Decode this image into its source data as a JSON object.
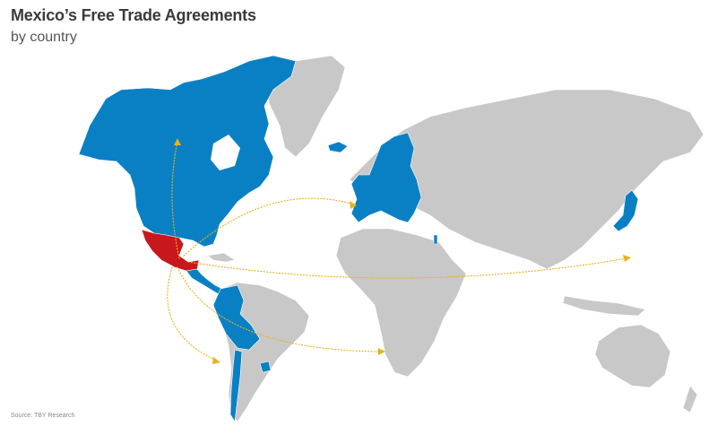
{
  "title": "Mexico’s Free Trade Agreements",
  "subtitle": "by country",
  "source": "Source: TBY Research",
  "colors": {
    "mexico": "#c8171d",
    "fta_partner": "#0a80c4",
    "other": "#c8c8c8",
    "routes": "#e8b21a"
  },
  "origin": "Mexico",
  "fta_partners": [
    "Canada",
    "United States",
    "Alaska (US)",
    "Guatemala",
    "Honduras",
    "El Salvador",
    "Nicaragua",
    "Costa Rica",
    "Panama",
    "Colombia",
    "Ecuador",
    "Peru",
    "Bolivia",
    "Chile",
    "Uruguay",
    "European Union",
    "Iceland",
    "Norway",
    "Switzerland",
    "Japan",
    "Israel"
  ],
  "routes": [
    {
      "from": "Mexico",
      "to": "Canada"
    },
    {
      "from": "Mexico",
      "to": "Europe"
    },
    {
      "from": "Mexico",
      "to": "Japan"
    },
    {
      "from": "Mexico",
      "to": "Chile"
    },
    {
      "from": "Mexico",
      "to": "Uruguay"
    }
  ]
}
